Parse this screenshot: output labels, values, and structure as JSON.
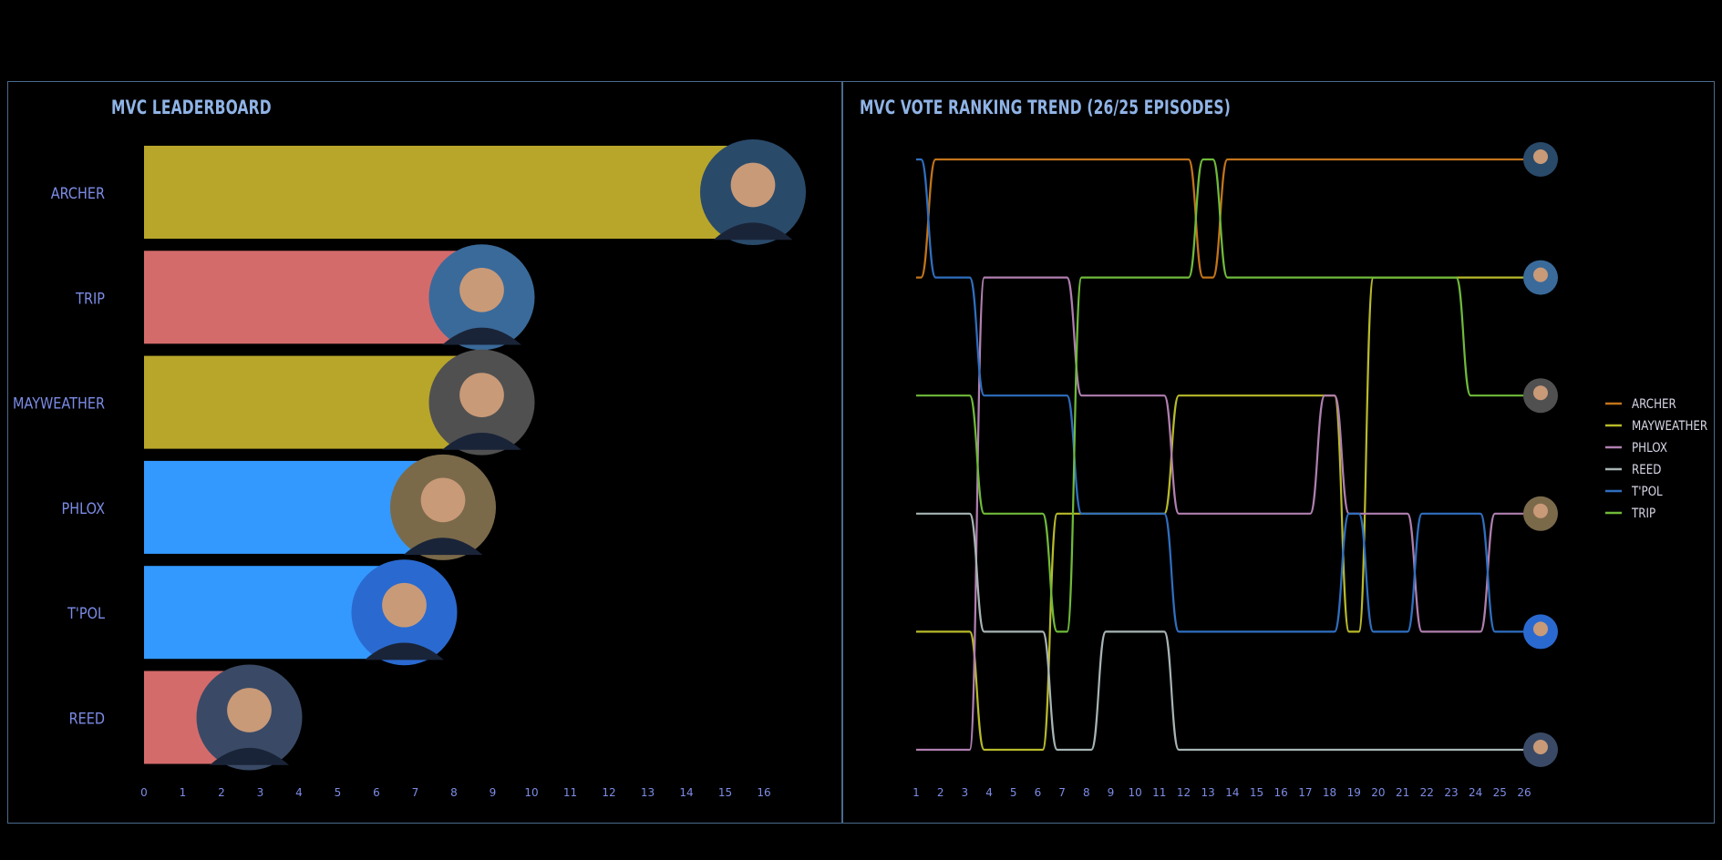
{
  "leaderboard": {
    "title": "MVC LEADERBOARD",
    "chart_data": {
      "type": "bar",
      "orientation": "horizontal",
      "categories": [
        "ARCHER",
        "TRIP",
        "MAYWEATHER",
        "PHLOX",
        "T'POL",
        "REED"
      ],
      "values": [
        16,
        9,
        9,
        8,
        7,
        3
      ],
      "bar_colors": [
        "#b8a62a",
        "#d46b6b",
        "#b8a62a",
        "#3399ff",
        "#3399ff",
        "#d46b6b"
      ],
      "x_ticks": [
        0,
        1,
        2,
        3,
        4,
        5,
        6,
        7,
        8,
        9,
        10,
        11,
        12,
        13,
        14,
        15,
        16
      ],
      "xlim": [
        0,
        17.4
      ]
    }
  },
  "trend": {
    "title": "MVC VOTE RANKING TREND (26/25 EPISODES)",
    "chart_data": {
      "type": "line",
      "x": [
        1,
        2,
        3,
        4,
        5,
        6,
        7,
        8,
        9,
        10,
        11,
        12,
        13,
        14,
        15,
        16,
        17,
        18,
        19,
        20,
        21,
        22,
        23,
        24,
        25,
        26
      ],
      "y_rank_range": [
        1,
        6
      ],
      "series": [
        {
          "name": "ARCHER",
          "color": "#c2741b",
          "ranks": [
            2,
            1,
            1,
            1,
            1,
            1,
            1,
            1,
            1,
            1,
            1,
            1,
            2,
            1,
            1,
            1,
            1,
            1,
            1,
            1,
            1,
            1,
            1,
            1,
            1,
            1
          ]
        },
        {
          "name": "MAYWEATHER",
          "color": "#b8ba2a",
          "ranks": [
            5,
            5,
            5,
            6,
            6,
            6,
            4,
            4,
            4,
            4,
            4,
            3,
            3,
            3,
            3,
            3,
            3,
            3,
            5,
            2,
            2,
            2,
            2,
            2,
            2,
            2
          ]
        },
        {
          "name": "PHLOX",
          "color": "#b07fb0",
          "ranks": [
            6,
            6,
            6,
            2,
            2,
            2,
            2,
            3,
            3,
            3,
            3,
            4,
            4,
            4,
            4,
            4,
            4,
            3,
            4,
            4,
            4,
            5,
            5,
            5,
            4,
            4
          ]
        },
        {
          "name": "REED",
          "color": "#a8b4b4",
          "ranks": [
            4,
            4,
            4,
            5,
            5,
            5,
            6,
            6,
            5,
            5,
            5,
            6,
            6,
            6,
            6,
            6,
            6,
            6,
            6,
            6,
            6,
            6,
            6,
            6,
            6,
            6
          ]
        },
        {
          "name": "T'POL",
          "color": "#2f6fc0",
          "ranks": [
            1,
            2,
            2,
            3,
            3,
            3,
            3,
            4,
            4,
            4,
            4,
            5,
            5,
            5,
            5,
            5,
            5,
            5,
            4,
            5,
            5,
            4,
            4,
            4,
            5,
            5
          ]
        },
        {
          "name": "TRIP",
          "color": "#6fba3a",
          "ranks": [
            3,
            3,
            3,
            4,
            4,
            4,
            5,
            2,
            2,
            2,
            2,
            2,
            1,
            2,
            2,
            2,
            2,
            2,
            2,
            2,
            2,
            2,
            2,
            3,
            3,
            3
          ]
        }
      ],
      "legend_placement": "right",
      "end_avatars_order": [
        "ARCHER",
        "TRIP",
        "MAYWEATHER",
        "PHLOX",
        "T'POL",
        "REED"
      ]
    }
  }
}
